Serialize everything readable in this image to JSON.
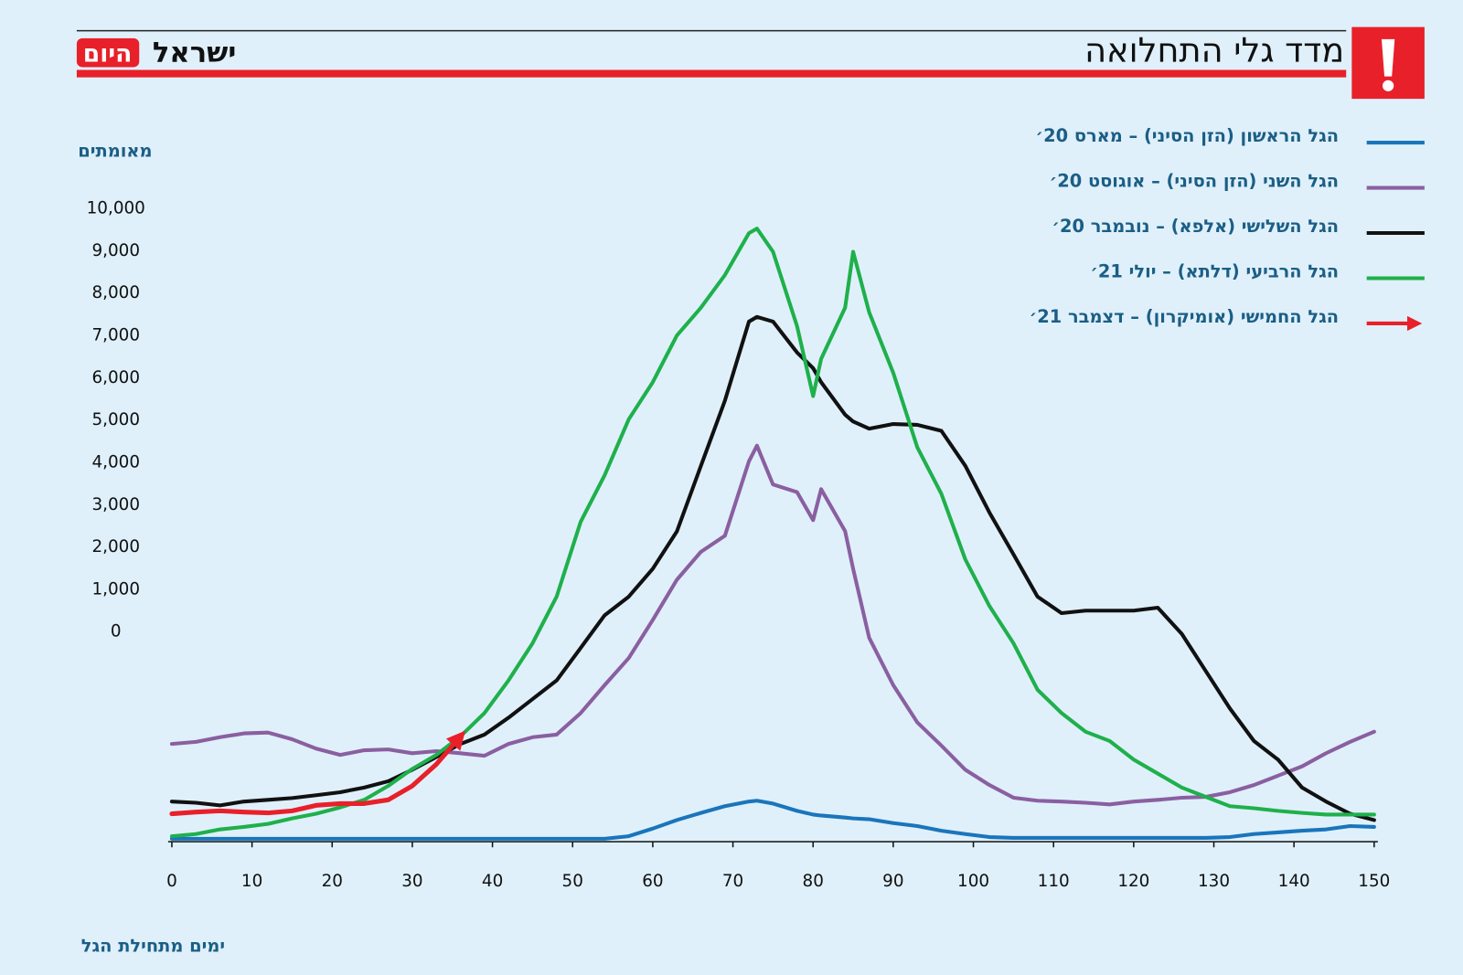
{
  "header": {
    "title": "מדד גלי התחלואה",
    "logo": {
      "name": "ישראל",
      "highlight": "היום"
    }
  },
  "chart_data": {
    "type": "line",
    "y_label": "מאומתים",
    "x_label": "ימים מתחילת הגל",
    "xlim": [
      0,
      150
    ],
    "xticks": [
      0,
      10,
      20,
      30,
      40,
      50,
      60,
      70,
      80,
      90,
      100,
      110,
      120,
      130,
      140,
      150
    ],
    "ylim": [
      -5000,
      10000
    ],
    "yticks": [
      0,
      {
        "value": 1000,
        "label": "1,000"
      },
      {
        "value": 2000,
        "label": "2,000"
      },
      {
        "value": 3000,
        "label": "3,000"
      },
      {
        "value": 4000,
        "label": "4,000"
      },
      {
        "value": 5000,
        "label": "5,000"
      },
      {
        "value": 6000,
        "label": "6,000"
      },
      {
        "value": 7000,
        "label": "7,000"
      },
      {
        "value": 8000,
        "label": "8,000"
      },
      {
        "value": 9000,
        "label": "9,000"
      },
      {
        "value": 10000,
        "label": "10,000"
      }
    ],
    "x": [
      0,
      3,
      6,
      9,
      12,
      15,
      18,
      21,
      24,
      27,
      30,
      33,
      36,
      39,
      42,
      45,
      48,
      51,
      54,
      57,
      60,
      63,
      66,
      69,
      72,
      73,
      75,
      78,
      80,
      81,
      84,
      85,
      87,
      90,
      93,
      96,
      99,
      102,
      105,
      108,
      111,
      114,
      117,
      120,
      123,
      126,
      129,
      132,
      135,
      138,
      141,
      144,
      147,
      150
    ],
    "series": [
      {
        "name": "הגל הראשון (הזן הסיני) – מארס 20׳",
        "color": "#1a75bb",
        "values": [
          -4930,
          -4930,
          -4930,
          -4930,
          -4930,
          -4930,
          -4930,
          -4930,
          -4930,
          -4930,
          -4930,
          -4930,
          -4930,
          -4930,
          -4930,
          -4930,
          -4930,
          -4930,
          -4930,
          -4870,
          -4690,
          -4490,
          -4320,
          -4160,
          -4050,
          -4030,
          -4100,
          -4270,
          -4360,
          -4380,
          -4430,
          -4450,
          -4470,
          -4560,
          -4630,
          -4740,
          -4820,
          -4890,
          -4910,
          -4910,
          -4910,
          -4910,
          -4910,
          -4910,
          -4910,
          -4910,
          -4910,
          -4890,
          -4820,
          -4780,
          -4740,
          -4710,
          -4630,
          -4650
        ]
      },
      {
        "name": "הגל השני (הזן הסיני) – אוגוסט 20׳",
        "color": "#8a5fa0",
        "values": [
          -2690,
          -2640,
          -2530,
          -2440,
          -2420,
          -2580,
          -2800,
          -2950,
          -2840,
          -2820,
          -2910,
          -2860,
          -2910,
          -2970,
          -2690,
          -2530,
          -2470,
          -1960,
          -1300,
          -660,
          240,
          1190,
          1850,
          2230,
          3990,
          4360,
          3440,
          3260,
          2600,
          3330,
          2340,
          1450,
          -180,
          -1300,
          -2180,
          -2730,
          -3300,
          -3660,
          -3960,
          -4030,
          -4050,
          -4080,
          -4120,
          -4050,
          -4010,
          -3960,
          -3940,
          -3830,
          -3660,
          -3440,
          -3220,
          -2910,
          -2640,
          -2400
        ]
      },
      {
        "name": "הגל השלישי (אלפא) – נובמבר 20׳",
        "color": "#111111",
        "values": [
          -4050,
          -4080,
          -4140,
          -4050,
          -4010,
          -3970,
          -3900,
          -3830,
          -3720,
          -3570,
          -3300,
          -3000,
          -2690,
          -2470,
          -2070,
          -1630,
          -1190,
          -420,
          350,
          790,
          1450,
          2330,
          3880,
          5420,
          7290,
          7400,
          7290,
          6560,
          6190,
          5860,
          5090,
          4930,
          4760,
          4870,
          4850,
          4710,
          3880,
          2780,
          1790,
          790,
          400,
          460,
          460,
          460,
          530,
          -90,
          -970,
          -1850,
          -2620,
          -3060,
          -3720,
          -4050,
          -4340,
          -4490
        ]
      },
      {
        "name": "הגל הרביעי (דלתא) – יולי 21׳",
        "color": "#1fb04b",
        "values": [
          -4870,
          -4820,
          -4710,
          -4650,
          -4580,
          -4450,
          -4340,
          -4190,
          -4010,
          -3680,
          -3280,
          -2950,
          -2510,
          -1960,
          -1190,
          -310,
          790,
          2560,
          3660,
          4980,
          5860,
          6960,
          7620,
          8390,
          9380,
          9490,
          8940,
          7180,
          5530,
          6410,
          7620,
          8940,
          7510,
          6080,
          4320,
          3220,
          1670,
          570,
          -310,
          -1410,
          -1960,
          -2400,
          -2620,
          -3060,
          -3390,
          -3720,
          -3940,
          -4160,
          -4210,
          -4270,
          -4320,
          -4360,
          -4360,
          -4360
        ]
      },
      {
        "name": "הגל החמישי (אומיקרון) – דצמבר 21׳",
        "color": "#e8202a",
        "arrow": true,
        "values": [
          -4340,
          -4300,
          -4270,
          -4300,
          -4320,
          -4270,
          -4140,
          -4100,
          -4100,
          -4010,
          -3680,
          -3170,
          -2510,
          null,
          null,
          null,
          null,
          null,
          null,
          null,
          null,
          null,
          null,
          null,
          null,
          null,
          null,
          null,
          null,
          null,
          null,
          null,
          null,
          null,
          null,
          null,
          null,
          null,
          null,
          null,
          null,
          null,
          null,
          null,
          null,
          null,
          null,
          null,
          null,
          null,
          null,
          null,
          null,
          null
        ]
      }
    ]
  }
}
